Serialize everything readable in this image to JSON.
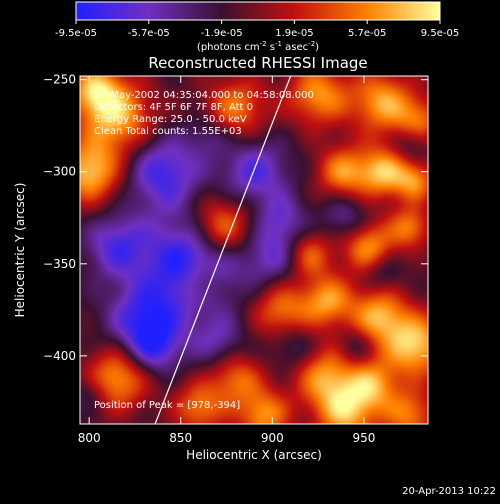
{
  "chart_data": {
    "type": "heatmap",
    "title": "Reconstructed RHESSI Image",
    "xlabel": "Heliocentric X (arcsec)",
    "ylabel": "Heliocentric Y (arcsec)",
    "xlim": [
      795,
      985
    ],
    "ylim": [
      -437,
      -248
    ],
    "x_ticks": [
      800,
      850,
      900,
      950
    ],
    "y_ticks": [
      -250,
      -300,
      -350,
      -400
    ],
    "colorbar": {
      "label_main": "(photons cm",
      "sup1": "-2",
      "label_mid": " s",
      "sup2": "-1",
      "label_end": " asec",
      "sup3": "-2",
      "label_close": ")",
      "range": [
        -9.5e-05,
        9.5e-05
      ],
      "ticks": [
        "-9.5e-05",
        "-5.7e-05",
        "-1.9e-05",
        "1.9e-05",
        "5.7e-05",
        "9.5e-05"
      ],
      "colors": [
        "#2020ff",
        "#7030c0",
        "#3a1030",
        "#c01010",
        "#ff8000",
        "#ffffa0"
      ]
    },
    "annotations": {
      "time_range": "23-May-2002 04:35:04.000 to 04:58:08.000",
      "detectors": "Detectors: 4F 5F 6F 7F 8F, Att 0",
      "energy": "Energy Range: 25.0 - 50.0 keV",
      "clean": "Clean    Total counts: 1.55E+03",
      "peak": "Position of Peak = [978,-394]"
    },
    "limb_line": {
      "x": [
        836,
        910
      ],
      "y": [
        -437,
        -248
      ]
    },
    "peak_position": [
      978,
      -394
    ],
    "sources": [
      {
        "x": 815,
        "y": -270,
        "v": 0.9,
        "s": 14
      },
      {
        "x": 800,
        "y": -300,
        "v": 0.95,
        "s": 12
      },
      {
        "x": 803,
        "y": -255,
        "v": 0.8,
        "s": 10
      },
      {
        "x": 880,
        "y": -265,
        "v": 0.7,
        "s": 12
      },
      {
        "x": 925,
        "y": -258,
        "v": 0.8,
        "s": 12
      },
      {
        "x": 960,
        "y": -262,
        "v": 0.85,
        "s": 12
      },
      {
        "x": 980,
        "y": -272,
        "v": 0.6,
        "s": 9
      },
      {
        "x": 938,
        "y": -300,
        "v": 0.75,
        "s": 10
      },
      {
        "x": 960,
        "y": -300,
        "v": 0.9,
        "s": 10
      },
      {
        "x": 978,
        "y": -305,
        "v": 0.7,
        "s": 8
      },
      {
        "x": 872,
        "y": -330,
        "v": 0.85,
        "s": 12
      },
      {
        "x": 920,
        "y": -345,
        "v": 0.65,
        "s": 9
      },
      {
        "x": 952,
        "y": -340,
        "v": 0.8,
        "s": 10
      },
      {
        "x": 975,
        "y": -330,
        "v": 0.7,
        "s": 8
      },
      {
        "x": 860,
        "y": -360,
        "v": 0.45,
        "s": 8
      },
      {
        "x": 905,
        "y": -375,
        "v": 0.7,
        "s": 11
      },
      {
        "x": 930,
        "y": -370,
        "v": 0.8,
        "s": 10
      },
      {
        "x": 958,
        "y": -378,
        "v": 0.85,
        "s": 11
      },
      {
        "x": 978,
        "y": -394,
        "v": 1.0,
        "s": 12
      },
      {
        "x": 815,
        "y": -412,
        "v": 0.85,
        "s": 12
      },
      {
        "x": 880,
        "y": -412,
        "v": 0.65,
        "s": 10
      },
      {
        "x": 928,
        "y": -410,
        "v": 0.75,
        "s": 12
      },
      {
        "x": 955,
        "y": -415,
        "v": 0.7,
        "s": 10
      },
      {
        "x": 860,
        "y": -428,
        "v": 0.7,
        "s": 10
      },
      {
        "x": 895,
        "y": -432,
        "v": 0.8,
        "s": 10
      },
      {
        "x": 940,
        "y": -430,
        "v": 0.9,
        "s": 12
      },
      {
        "x": 975,
        "y": -432,
        "v": 0.7,
        "s": 10
      },
      {
        "x": 840,
        "y": -300,
        "v": -0.7,
        "s": 14
      },
      {
        "x": 855,
        "y": -350,
        "v": -0.9,
        "s": 18
      },
      {
        "x": 830,
        "y": -380,
        "v": -0.7,
        "s": 14
      },
      {
        "x": 815,
        "y": -340,
        "v": -0.6,
        "s": 12
      },
      {
        "x": 890,
        "y": -300,
        "v": -0.6,
        "s": 13
      },
      {
        "x": 900,
        "y": -345,
        "v": -0.5,
        "s": 12
      },
      {
        "x": 835,
        "y": -395,
        "v": -0.55,
        "s": 10
      },
      {
        "x": 870,
        "y": -392,
        "v": -0.4,
        "s": 10
      },
      {
        "x": 912,
        "y": -395,
        "v": -0.35,
        "s": 9
      },
      {
        "x": 940,
        "y": -325,
        "v": -0.4,
        "s": 9
      },
      {
        "x": 905,
        "y": -325,
        "v": -0.4,
        "s": 9
      },
      {
        "x": 865,
        "y": -280,
        "v": -0.3,
        "s": 8
      },
      {
        "x": 960,
        "y": -355,
        "v": -0.3,
        "s": 7
      },
      {
        "x": 975,
        "y": -285,
        "v": -0.3,
        "s": 7
      },
      {
        "x": 945,
        "y": -395,
        "v": -0.3,
        "s": 7
      },
      {
        "x": 800,
        "y": -420,
        "v": -0.3,
        "s": 7
      }
    ]
  },
  "footer": {
    "timestamp": "20-Apr-2013 10:22"
  }
}
